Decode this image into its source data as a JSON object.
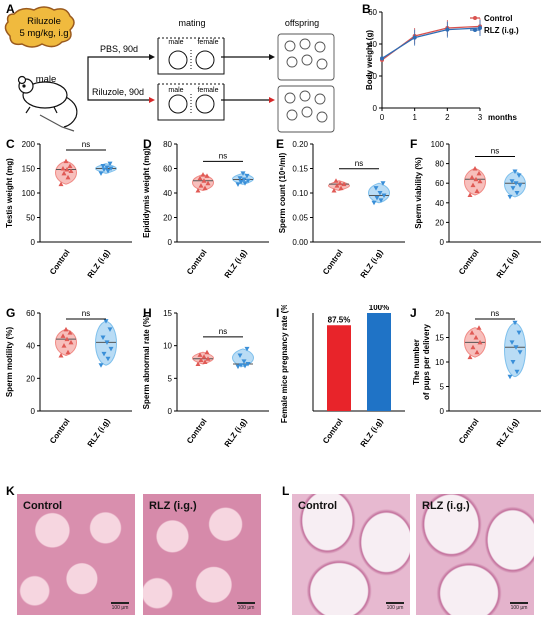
{
  "letters": {
    "A": "A",
    "B": "B",
    "C": "C",
    "D": "D",
    "E": "E",
    "F": "F",
    "G": "G",
    "H": "H",
    "I": "I",
    "J": "J",
    "K": "K",
    "L": "L"
  },
  "schematic": {
    "drug_line1": "Riluzole",
    "drug_line2": "5 mg/kg, i.g",
    "mouse_label": "male",
    "mating_label": "mating",
    "offspring_label": "offspring",
    "pbs_label": "PBS, 90d",
    "riluzole_label": "Riluzole, 90d",
    "male_label": "male",
    "female_label": "female",
    "colors": {
      "drug_box": "#f0ba3e",
      "drug_border": "#9a5a1e",
      "arrow_red": "#d62728"
    }
  },
  "histology": {
    "K": {
      "left": "Control",
      "right": "RLZ (i.g.)",
      "scale": "100 μm"
    },
    "L": {
      "left": "Control",
      "right": "RLZ (i.g.)",
      "scale": "100 μm"
    }
  },
  "chart_data": [
    {
      "panel": "B",
      "type": "line",
      "x": [
        0,
        1,
        2,
        3
      ],
      "xlabel": "months",
      "ylabel": "Body weight (g)",
      "ylim": [
        0,
        60
      ],
      "yticks": [
        0,
        20,
        40,
        60
      ],
      "series": [
        {
          "name": "Control",
          "color": "#d9534f",
          "values": [
            30,
            45,
            50,
            51
          ]
        },
        {
          "name": "RLZ (i.g.)",
          "color": "#2e6db5",
          "values": [
            31,
            44,
            49,
            50
          ]
        }
      ]
    },
    {
      "panel": "C",
      "type": "violin",
      "categories": [
        "Control",
        "RLZ (i.g)"
      ],
      "ylabel": "Testis weight (mg)",
      "ylim": [
        0,
        200
      ],
      "yticks": [
        0,
        50,
        100,
        150,
        200
      ],
      "annotation": "ns",
      "colors": [
        "#f08a85",
        "#7fc0ec"
      ],
      "series": [
        {
          "name": "Control",
          "values": [
            165,
            155,
            150,
            148,
            145,
            140,
            132,
            118
          ]
        },
        {
          "name": "RLZ (i.g)",
          "values": [
            160,
            155,
            152,
            150,
            148,
            145,
            140
          ]
        }
      ]
    },
    {
      "panel": "D",
      "type": "violin",
      "categories": [
        "Control",
        "RLZ (i.g)"
      ],
      "ylabel": "Epididymis weight (mg)",
      "ylim": [
        0,
        80
      ],
      "yticks": [
        0,
        20,
        40,
        60,
        80
      ],
      "annotation": "ns",
      "colors": [
        "#f08a85",
        "#7fc0ec"
      ],
      "series": [
        {
          "name": "Control",
          "values": [
            55,
            54,
            52,
            50,
            48,
            46,
            44,
            42
          ]
        },
        {
          "name": "RLZ (i.g)",
          "values": [
            56,
            54,
            52,
            51,
            50,
            49,
            48,
            47
          ]
        }
      ]
    },
    {
      "panel": "E",
      "type": "violin",
      "categories": [
        "Control",
        "RLZ (i.g)"
      ],
      "ylabel": "Sperm count (10⁶/ml)",
      "ylim": [
        0,
        0.2
      ],
      "yticks": [
        "0.00",
        "0.05",
        "0.10",
        "0.15",
        "0.20"
      ],
      "annotation": "ns",
      "colors": [
        "#f08a85",
        "#7fc0ec"
      ],
      "series": [
        {
          "name": "Control",
          "values": [
            0.125,
            0.12,
            0.118,
            0.115,
            0.11,
            0.105
          ]
        },
        {
          "name": "RLZ (i.g)",
          "values": [
            0.12,
            0.11,
            0.1,
            0.095,
            0.09,
            0.085,
            0.08
          ]
        }
      ]
    },
    {
      "panel": "F",
      "type": "violin",
      "categories": [
        "Control",
        "RLZ (i.g)"
      ],
      "ylabel": "Sperm viability (%)",
      "ylim": [
        0,
        100
      ],
      "yticks": [
        0,
        20,
        40,
        60,
        80,
        100
      ],
      "annotation": "ns",
      "colors": [
        "#f08a85",
        "#7fc0ec"
      ],
      "series": [
        {
          "name": "Control",
          "values": [
            75,
            70,
            66,
            64,
            62,
            58,
            52,
            48
          ]
        },
        {
          "name": "RLZ (i.g)",
          "values": [
            72,
            68,
            62,
            60,
            58,
            55,
            50,
            46
          ]
        }
      ]
    },
    {
      "panel": "G",
      "type": "violin",
      "categories": [
        "Control",
        "RLZ (i.g)"
      ],
      "ylabel": "Sperm motility (%)",
      "ylim": [
        0,
        60
      ],
      "yticks": [
        0,
        20,
        40,
        60
      ],
      "annotation": "ns",
      "colors": [
        "#f08a85",
        "#7fc0ec"
      ],
      "series": [
        {
          "name": "Control",
          "values": [
            50,
            48,
            46,
            44,
            42,
            40,
            36,
            34
          ]
        },
        {
          "name": "RLZ (i.g)",
          "values": [
            55,
            50,
            45,
            42,
            38,
            35,
            32,
            28
          ]
        }
      ]
    },
    {
      "panel": "H",
      "type": "violin",
      "categories": [
        "Control",
        "RLZ (i.g)"
      ],
      "ylabel": "Sperm abnormal rate (%)",
      "ylim": [
        0,
        15
      ],
      "yticks": [
        0,
        5,
        10,
        15
      ],
      "annotation": "ns",
      "colors": [
        "#f08a85",
        "#7fc0ec"
      ],
      "series": [
        {
          "name": "Control",
          "values": [
            9,
            8.6,
            8.3,
            8,
            7.8,
            7.5,
            7.2
          ]
        },
        {
          "name": "RLZ (i.g)",
          "values": [
            9.5,
            8.5,
            7.6,
            7.2,
            7,
            6.9,
            6.8
          ]
        }
      ]
    },
    {
      "panel": "I",
      "type": "bar",
      "categories": [
        "Control",
        "RLZ (i.g)"
      ],
      "values": [
        87.5,
        100
      ],
      "labels": [
        "87.5%",
        "100%"
      ],
      "ylabel": "Female mice pregnancy rate (%)",
      "ylim": [
        0,
        100
      ],
      "colors": [
        "#e8242a",
        "#1f73c6"
      ]
    },
    {
      "panel": "J",
      "type": "violin",
      "categories": [
        "Control",
        "RLZ (i.g)"
      ],
      "ylabel": "The number\nof pups per delivery",
      "ylabel_lines": [
        "The number",
        "of pups per delivery"
      ],
      "ylim": [
        0,
        20
      ],
      "yticks": [
        0,
        5,
        10,
        15,
        20
      ],
      "annotation": "ns",
      "colors": [
        "#f08a85",
        "#7fc0ec"
      ],
      "series": [
        {
          "name": "Control",
          "values": [
            17,
            16,
            15,
            14,
            13,
            12,
            11
          ]
        },
        {
          "name": "RLZ (i.g)",
          "values": [
            18,
            16,
            14,
            13,
            12,
            10,
            8,
            7
          ]
        }
      ]
    }
  ]
}
